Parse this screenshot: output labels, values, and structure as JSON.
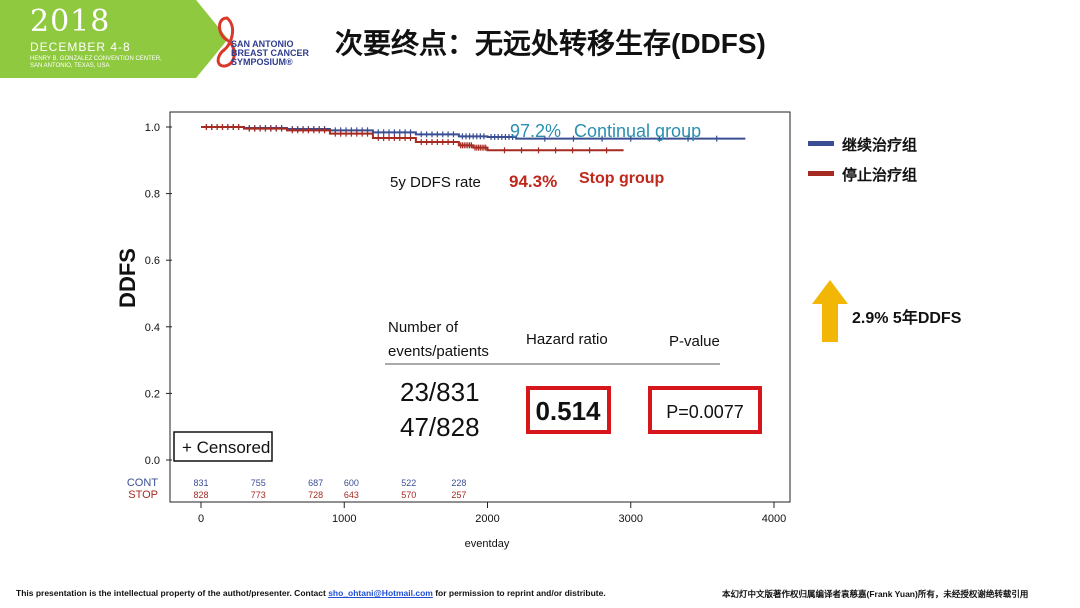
{
  "banner": {
    "year": "2018",
    "dates": "DECEMBER 4-8",
    "venue_line1": "HENRY B. GONZALEZ CONVENTION CENTER,",
    "venue_line2": "SAN ANTONIO, TEXAS, USA",
    "logo_line1": "SAN ANTONIO",
    "logo_line2": "BREAST CANCER",
    "logo_line3": "SYMPOSIUM®"
  },
  "slide_title": "次要终点：无远处转移生存(DDFS)",
  "legend": {
    "continue": "继续治疗组",
    "stop": "停止治疗组"
  },
  "arrow_annotation": "2.9%  5年DDFS",
  "footer": {
    "left_text_1": "This presentation is the intellectual property of the authot/presenter. Contact ",
    "email": "sho_ohtani@Hotmail.com",
    "left_text_2": " for permission to reprint and/or distribute.",
    "right_text": "本幻灯中文版著作权归属编译者袁慈嘉(Frank  Yuan)所有，未经授权谢绝转载引用"
  },
  "colors": {
    "continue": "#3b4e93",
    "stop": "#a52a22",
    "continue_label": "#2a8fb0",
    "stop_label": "#c0281c",
    "box_red": "#d7161c",
    "arrow": "#f2b705",
    "banner": "#8fc93f"
  },
  "chart_data": {
    "type": "line",
    "xlabel": "eventday",
    "ylabel": "DDFS",
    "xlim": [
      0,
      4000
    ],
    "ylim": [
      0,
      1.0
    ],
    "xticks": [
      0,
      1000,
      2000,
      3000,
      4000
    ],
    "yticks": [
      0.0,
      0.2,
      0.4,
      0.6,
      0.8,
      1.0
    ],
    "series": [
      {
        "name": "继续治疗组",
        "x": [
          0,
          300,
          600,
          900,
          1200,
          1500,
          1800,
          2000,
          2200,
          3800
        ],
        "y": [
          1.0,
          0.997,
          0.994,
          0.99,
          0.984,
          0.978,
          0.972,
          0.97,
          0.965,
          0.965
        ]
      },
      {
        "name": "停止治疗组",
        "x": [
          0,
          300,
          600,
          900,
          1200,
          1500,
          1800,
          1900,
          2000,
          2950
        ],
        "y": [
          1.0,
          0.995,
          0.99,
          0.98,
          0.967,
          0.955,
          0.945,
          0.938,
          0.93,
          0.93
        ]
      }
    ],
    "annotations": {
      "continue_rate": "97.2%",
      "continue_group": "Continual group",
      "rate_label": "5y DDFS rate",
      "stop_rate": "94.3%",
      "stop_group": "Stop group",
      "censored": "+ Censored"
    },
    "stats_table": {
      "col1_header_line1": "Number of",
      "col1_header_line2": "events/patients",
      "col2_header": "Hazard ratio",
      "col3_header": "P-value",
      "cont_events": "23/831",
      "stop_events": "47/828",
      "hazard_ratio": "0.514",
      "p_value": "P=0.0077"
    },
    "risk_table": {
      "times": [
        0,
        400,
        800,
        1050,
        1450,
        1800
      ],
      "rows": [
        {
          "label": "CONT",
          "values": [
            "831",
            "755",
            "687",
            "600",
            "522",
            "228"
          ]
        },
        {
          "label": "STOP",
          "values": [
            "828",
            "773",
            "728",
            "643",
            "570",
            "257"
          ]
        }
      ]
    }
  }
}
